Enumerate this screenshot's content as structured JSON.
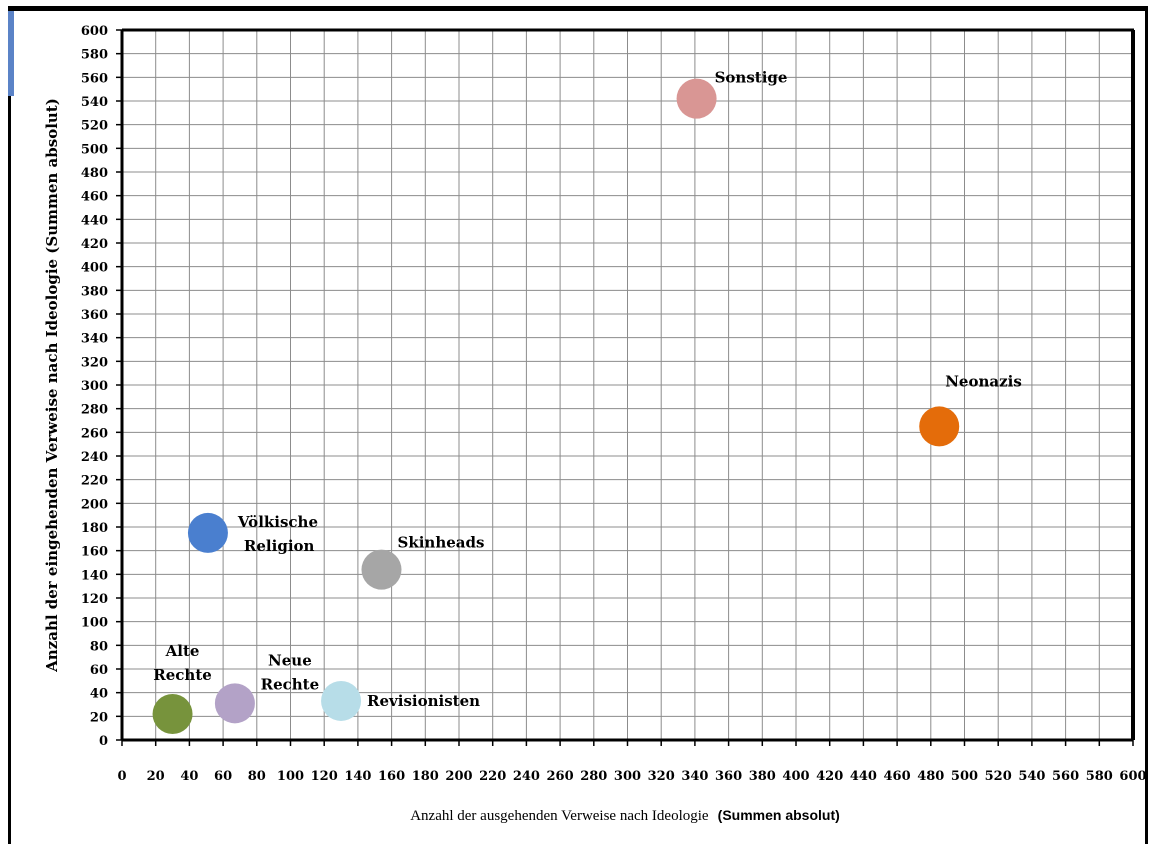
{
  "chart_data": {
    "type": "scatter",
    "title": "",
    "xlabel": "Anzahl der ausgehenden Verweise nach Ideologie",
    "xlabel_suffix": "(Summen absolut)",
    "ylabel": "Anzahl der eingehenden Verweise nach Ideologie (Summen absolut)",
    "xlim": [
      0,
      600
    ],
    "ylim": [
      0,
      600
    ],
    "xstep": 20,
    "ystep": 20,
    "grid": true,
    "legend": "none",
    "points": [
      {
        "label": "Sonstige",
        "x": 341,
        "y": 542,
        "color": "#d99694"
      },
      {
        "label": "Neonazis",
        "x": 485,
        "y": 265,
        "color": "#e46c0a"
      },
      {
        "label": "Völkische Religion",
        "x": 51,
        "y": 175,
        "color": "#4a7fcf"
      },
      {
        "label": "Skinheads",
        "x": 154,
        "y": 144,
        "color": "#a6a6a6"
      },
      {
        "label": "Alte Rechte",
        "x": 30,
        "y": 22,
        "color": "#77933c"
      },
      {
        "label": "Neue Rechte",
        "x": 67,
        "y": 31,
        "color": "#b3a2c7"
      },
      {
        "label": "Revisionisten",
        "x": 130,
        "y": 33,
        "color": "#b7dde8"
      }
    ]
  }
}
